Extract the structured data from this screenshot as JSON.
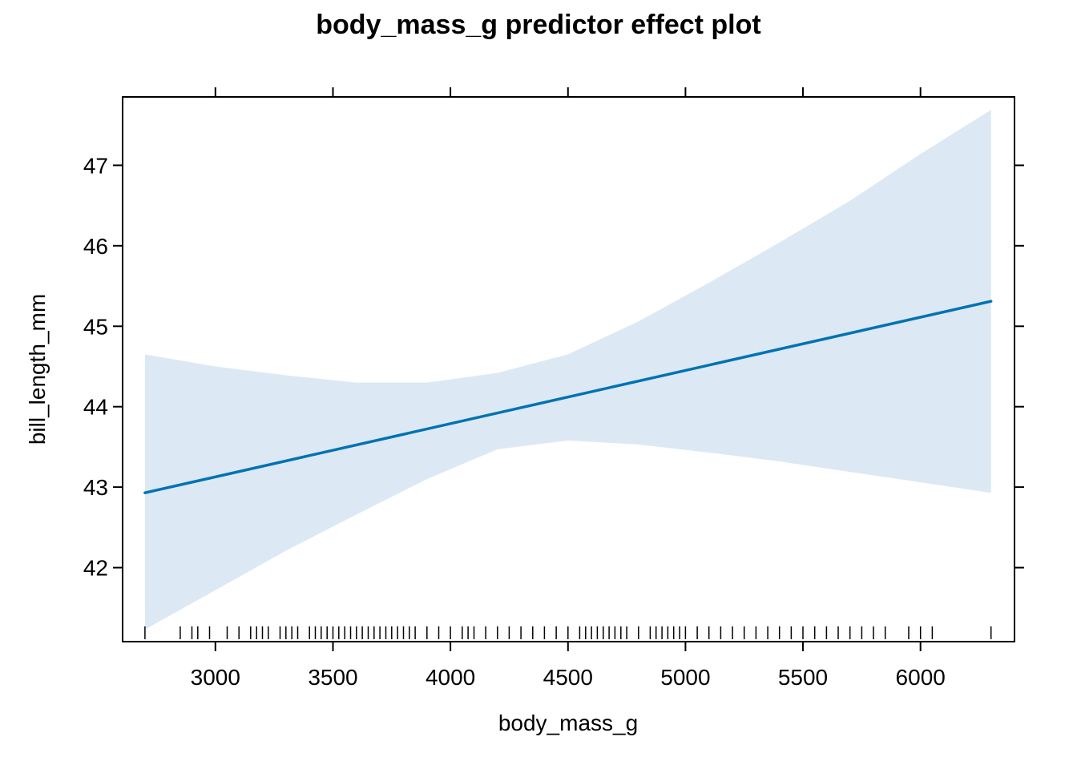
{
  "chart_data": {
    "type": "line",
    "title": "body_mass_g predictor effect plot",
    "xlabel": "body_mass_g",
    "ylabel": "bill_length_mm",
    "xlim": [
      2605,
      6400
    ],
    "ylim": [
      41.08,
      47.85
    ],
    "x_ticks": [
      3000,
      3500,
      4000,
      4500,
      5000,
      5500,
      6000
    ],
    "y_ticks": [
      42,
      43,
      44,
      45,
      46,
      47
    ],
    "grid": false,
    "legend": "none",
    "colors": {
      "line": "#0072B2",
      "band": "#DCE9F4"
    },
    "series": [
      {
        "x": [
          2700,
          6300
        ],
        "y": [
          42.93,
          45.31
        ]
      }
    ],
    "confidence_band": {
      "x": [
        2700,
        3000,
        3300,
        3600,
        3900,
        4200,
        4500,
        4800,
        5100,
        5400,
        5700,
        6000,
        6300
      ],
      "lower": [
        41.23,
        41.72,
        42.21,
        42.66,
        43.1,
        43.47,
        43.58,
        43.53,
        43.43,
        43.32,
        43.19,
        43.06,
        42.93
      ],
      "upper": [
        44.65,
        44.5,
        44.39,
        44.3,
        44.3,
        44.42,
        44.65,
        45.06,
        45.54,
        46.04,
        46.56,
        47.14,
        47.69
      ]
    },
    "rug_x": [
      2700,
      2850,
      2900,
      2925,
      2975,
      3050,
      3100,
      3150,
      3175,
      3200,
      3225,
      3275,
      3300,
      3325,
      3350,
      3400,
      3425,
      3450,
      3475,
      3500,
      3525,
      3550,
      3575,
      3600,
      3625,
      3650,
      3675,
      3700,
      3725,
      3750,
      3775,
      3800,
      3825,
      3850,
      3900,
      3950,
      4000,
      4050,
      4075,
      4100,
      4150,
      4200,
      4250,
      4300,
      4350,
      4400,
      4450,
      4500,
      4550,
      4575,
      4600,
      4625,
      4650,
      4675,
      4700,
      4725,
      4750,
      4800,
      4850,
      4875,
      4900,
      4925,
      4950,
      4975,
      5000,
      5050,
      5100,
      5150,
      5200,
      5250,
      5300,
      5350,
      5400,
      5450,
      5500,
      5550,
      5600,
      5650,
      5700,
      5750,
      5800,
      5850,
      5950,
      6000,
      6050,
      6300
    ]
  }
}
